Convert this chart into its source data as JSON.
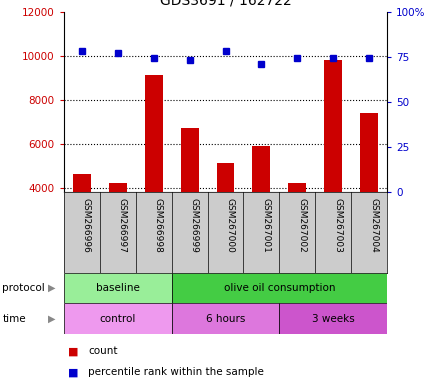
{
  "title": "GDS3691 / 162722",
  "categories": [
    "GSM266996",
    "GSM266997",
    "GSM266998",
    "GSM266999",
    "GSM267000",
    "GSM267001",
    "GSM267002",
    "GSM267003",
    "GSM267004"
  ],
  "bar_values": [
    4600,
    4200,
    9100,
    6700,
    5100,
    5900,
    4200,
    9800,
    7400
  ],
  "percentile_values": [
    78,
    77,
    74,
    73,
    78,
    71,
    74,
    74,
    74
  ],
  "bar_color": "#cc0000",
  "dot_color": "#0000cc",
  "ylim_left": [
    3800,
    12000
  ],
  "ylim_right": [
    0,
    100
  ],
  "yticks_left": [
    4000,
    6000,
    8000,
    10000,
    12000
  ],
  "yticks_right": [
    0,
    25,
    50,
    75,
    100
  ],
  "ytick_labels_left": [
    "4000",
    "6000",
    "8000",
    "10000",
    "12000"
  ],
  "ytick_labels_right": [
    "0",
    "25",
    "50",
    "75",
    "100%"
  ],
  "grid_values": [
    10000,
    8000,
    6000,
    4000
  ],
  "protocol_groups": [
    {
      "label": "baseline",
      "start": 0,
      "end": 3,
      "color": "#99ee99"
    },
    {
      "label": "olive oil consumption",
      "start": 3,
      "end": 9,
      "color": "#44cc44"
    }
  ],
  "time_groups": [
    {
      "label": "control",
      "start": 0,
      "end": 3,
      "color": "#ee99ee"
    },
    {
      "label": "6 hours",
      "start": 3,
      "end": 6,
      "color": "#dd77dd"
    },
    {
      "label": "3 weeks",
      "start": 6,
      "end": 9,
      "color": "#cc55cc"
    }
  ],
  "legend_count_color": "#cc0000",
  "legend_dot_color": "#0000cc",
  "left_label_color": "#cc0000",
  "right_label_color": "#0000cc",
  "sample_bg_color": "#cccccc",
  "bar_width": 0.5
}
